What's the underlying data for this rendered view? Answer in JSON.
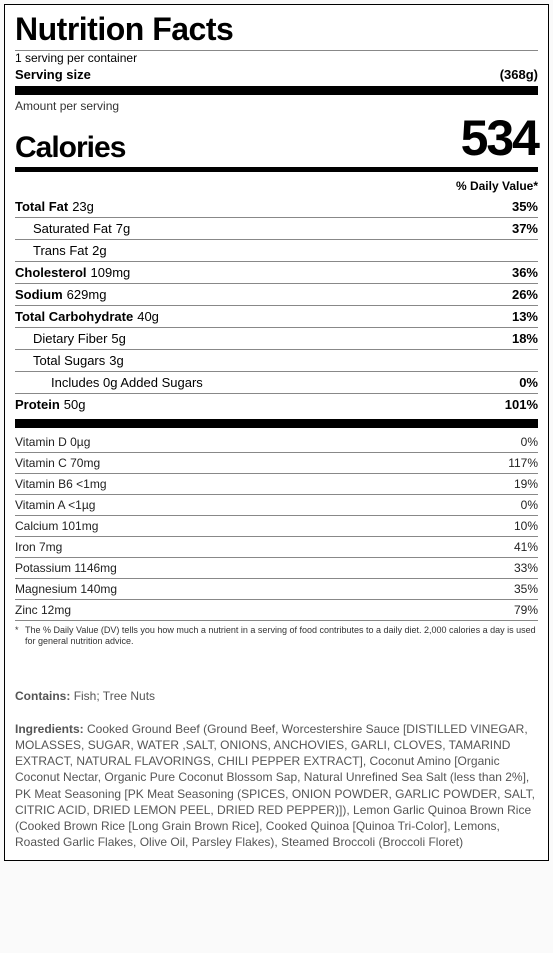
{
  "title": "Nutrition Facts",
  "servings_per_container": "1 serving per container",
  "serving_size_label": "Serving size",
  "serving_size_value": "(368g)",
  "amount_per_serving": "Amount per serving",
  "calories_label": "Calories",
  "calories_value": "534",
  "dv_header": "% Daily Value*",
  "nutrients": [
    {
      "label": "Total Fat",
      "amount": "23g",
      "dv": "35%",
      "bold": true,
      "indent": 0
    },
    {
      "label": "Saturated Fat",
      "amount": "7g",
      "dv": "37%",
      "bold": false,
      "indent": 1
    },
    {
      "label": "Trans Fat",
      "amount": "2g",
      "dv": "",
      "bold": false,
      "indent": 1
    },
    {
      "label": "Cholesterol",
      "amount": "109mg",
      "dv": "36%",
      "bold": true,
      "indent": 0
    },
    {
      "label": "Sodium",
      "amount": "629mg",
      "dv": "26%",
      "bold": true,
      "indent": 0
    },
    {
      "label": "Total Carbohydrate",
      "amount": "40g",
      "dv": "13%",
      "bold": true,
      "indent": 0
    },
    {
      "label": "Dietary Fiber",
      "amount": "5g",
      "dv": "18%",
      "bold": false,
      "indent": 1
    },
    {
      "label": "Total Sugars",
      "amount": "3g",
      "dv": "",
      "bold": false,
      "indent": 1
    },
    {
      "label": "Includes 0g Added Sugars",
      "amount": "",
      "dv": "0%",
      "bold": false,
      "indent": 2
    },
    {
      "label": "Protein",
      "amount": "50g",
      "dv": "101%",
      "bold": true,
      "indent": 0
    }
  ],
  "vitamins": [
    {
      "label": "Vitamin D 0µg",
      "dv": "0%"
    },
    {
      "label": "Vitamin C 70mg",
      "dv": "117%"
    },
    {
      "label": "Vitamin B6 <1mg",
      "dv": "19%"
    },
    {
      "label": "Vitamin A <1µg",
      "dv": "0%"
    },
    {
      "label": "Calcium 101mg",
      "dv": "10%"
    },
    {
      "label": "Iron 7mg",
      "dv": "41%"
    },
    {
      "label": "Potassium 1146mg",
      "dv": "33%"
    },
    {
      "label": "Magnesium 140mg",
      "dv": "35%"
    },
    {
      "label": "Zinc 12mg",
      "dv": "79%"
    }
  ],
  "footnote": "The % Daily Value (DV) tells you how much a nutrient in a serving of food contributes to a daily diet. 2,000 calories a day is used for general nutrition advice.",
  "contains_label": "Contains:",
  "contains_text": "Fish; Tree Nuts",
  "ingredients_label": "Ingredients:",
  "ingredients_text": "Cooked Ground Beef (Ground Beef, Worcestershire Sauce [DISTILLED VINEGAR, MOLASSES, SUGAR, WATER ,SALT, ONIONS, ANCHOVIES, GARLI, CLOVES, TAMARIND EXTRACT, NATURAL FLAVORINGS, CHILI PEPPER EXTRACT], Coconut Amino [Organic Coconut Nectar, Organic Pure Coconut Blossom Sap, Natural Unrefined Sea Salt (less than 2%], PK Meat Seasoning [PK Meat Seasoning (SPICES, ONION POWDER, GARLIC POWDER, SALT, CITRIC ACID, DRIED LEMON PEEL, DRIED RED PEPPER)]), Lemon Garlic Quinoa Brown Rice (Cooked Brown Rice [Long Grain Brown Rice], Cooked Quinoa [Quinoa Tri-Color], Lemons, Roasted Garlic Flakes, Olive Oil, Parsley Flakes), Steamed Broccoli (Broccoli Floret)"
}
